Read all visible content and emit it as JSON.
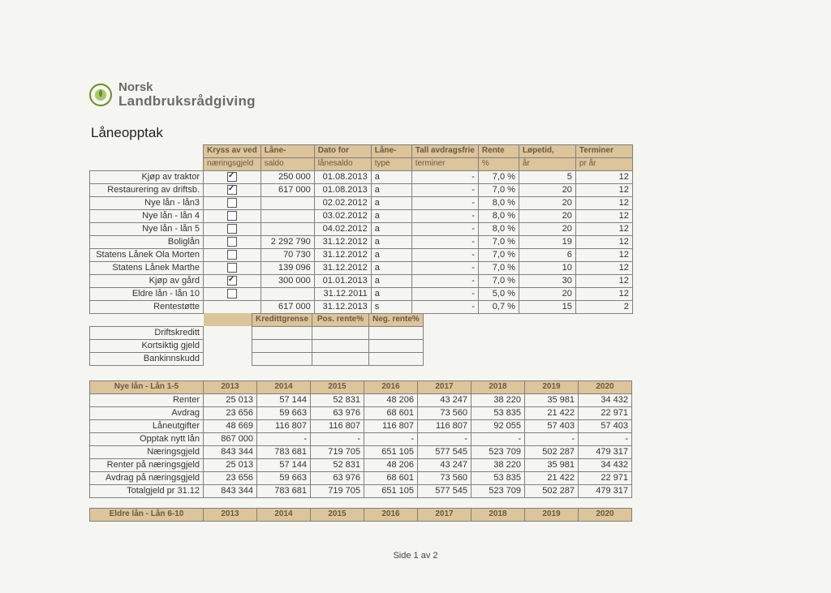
{
  "brand": {
    "line1": "Norsk",
    "line2": "Landbruksrådgiving"
  },
  "section_title": "Låneopptak",
  "loans_headers": {
    "kryss_top": "Kryss av ved",
    "kryss_sub": "næringsgjeld",
    "saldo_top": "Låne-",
    "saldo_sub": "saldo",
    "dato_top": "Dato for",
    "dato_sub": "lånesaldo",
    "type_top": "Låne-",
    "type_sub": "type",
    "avdrag_top": "Tall avdragsfrie",
    "rente_top": "Rente",
    "avdrag_sub": "terminer",
    "rente_sub": "%",
    "lopetid_top": "Løpetid,",
    "lopetid_sub": "år",
    "terminer_top": "Terminer",
    "terminer_sub": "pr år"
  },
  "loans": [
    {
      "label": "Kjøp av traktor",
      "checked": true,
      "saldo": "250 000",
      "dato": "01.08.2013",
      "type": "a",
      "avdrag": "-",
      "rente": "7,0 %",
      "lop": "5",
      "term": "12"
    },
    {
      "label": "Restaurering av driftsb.",
      "checked": true,
      "saldo": "617 000",
      "dato": "01.08.2013",
      "type": "a",
      "avdrag": "-",
      "rente": "7,0 %",
      "lop": "20",
      "term": "12"
    },
    {
      "label": "Nye lån - lån3",
      "checked": false,
      "saldo": "",
      "dato": "02.02.2012",
      "type": "a",
      "avdrag": "-",
      "rente": "8,0 %",
      "lop": "20",
      "term": "12"
    },
    {
      "label": "Nye lån - lån 4",
      "checked": false,
      "saldo": "",
      "dato": "03.02.2012",
      "type": "a",
      "avdrag": "-",
      "rente": "8,0 %",
      "lop": "20",
      "term": "12"
    },
    {
      "label": "Nye lån - lån 5",
      "checked": false,
      "saldo": "",
      "dato": "04.02.2012",
      "type": "a",
      "avdrag": "-",
      "rente": "8,0 %",
      "lop": "20",
      "term": "12"
    },
    {
      "label": "Boliglån",
      "checked": false,
      "saldo": "2 292 790",
      "dato": "31.12.2012",
      "type": "a",
      "avdrag": "-",
      "rente": "7,0 %",
      "lop": "19",
      "term": "12"
    },
    {
      "label": "Statens Lånek Ola Morten",
      "checked": false,
      "saldo": "70 730",
      "dato": "31.12.2012",
      "type": "a",
      "avdrag": "-",
      "rente": "7,0 %",
      "lop": "6",
      "term": "12"
    },
    {
      "label": "Statens Lånek Marthe",
      "checked": false,
      "saldo": "139 096",
      "dato": "31.12.2012",
      "type": "a",
      "avdrag": "-",
      "rente": "7,0 %",
      "lop": "10",
      "term": "12"
    },
    {
      "label": "Kjøp av gård",
      "checked": true,
      "saldo": "300 000",
      "dato": "01.01.2013",
      "type": "a",
      "avdrag": "-",
      "rente": "7,0 %",
      "lop": "30",
      "term": "12"
    },
    {
      "label": "Eldre lån - lån 10",
      "checked": false,
      "saldo": "",
      "dato": "31.12.2011",
      "type": "a",
      "avdrag": "-",
      "rente": "5,0 %",
      "lop": "20",
      "term": "12"
    },
    {
      "label": "Rentestøtte",
      "checked": null,
      "saldo": "617 000",
      "dato": "31.12.2013",
      "type": "s",
      "avdrag": "-",
      "rente": "0,7 %",
      "lop": "15",
      "term": "2"
    }
  ],
  "kreditt_header": {
    "a": "Kredittgrense",
    "b": "Pos. rente%",
    "c": "Neg. rente%"
  },
  "kreditt_rows": [
    {
      "label": "Driftskreditt"
    },
    {
      "label": "Kortsiktig gjeld"
    },
    {
      "label": "Bankinnskudd"
    }
  ],
  "years": [
    "2013",
    "2014",
    "2015",
    "2016",
    "2017",
    "2018",
    "2019",
    "2020"
  ],
  "proj_title": "Nye lån - Lån 1-5",
  "proj_rows": [
    {
      "label": "Renter",
      "vals": [
        "25 013",
        "57 144",
        "52 831",
        "48 206",
        "43 247",
        "38 220",
        "35 981",
        "34 432"
      ]
    },
    {
      "label": "Avdrag",
      "vals": [
        "23 656",
        "59 663",
        "63 976",
        "68 601",
        "73 560",
        "53 835",
        "21 422",
        "22 971"
      ]
    },
    {
      "label": "Låneutgifter",
      "vals": [
        "48 669",
        "116 807",
        "116 807",
        "116 807",
        "116 807",
        "92 055",
        "57 403",
        "57 403"
      ]
    },
    {
      "label": "Opptak nytt lån",
      "vals": [
        "867 000",
        "-",
        "-",
        "-",
        "-",
        "-",
        "-",
        "-"
      ]
    },
    {
      "label": "Næringsgjeld",
      "vals": [
        "843 344",
        "783 681",
        "719 705",
        "651 105",
        "577 545",
        "523 709",
        "502 287",
        "479 317"
      ]
    },
    {
      "label": "Renter på næringsgjeld",
      "vals": [
        "25 013",
        "57 144",
        "52 831",
        "48 206",
        "43 247",
        "38 220",
        "35 981",
        "34 432"
      ]
    },
    {
      "label": "Avdrag på næringsgjeld",
      "vals": [
        "23 656",
        "59 663",
        "63 976",
        "68 601",
        "73 560",
        "53 835",
        "21 422",
        "22 971"
      ]
    },
    {
      "label": "Totalgjeld pr 31.12",
      "vals": [
        "843 344",
        "783 681",
        "719 705",
        "651 105",
        "577 545",
        "523 709",
        "502 287",
        "479 317"
      ]
    }
  ],
  "proj2_title": "Eldre lån - Lån 6-10",
  "footer": "Side 1 av 2",
  "colors": {
    "header_bg": "#dcc49b",
    "header_text": "#6a5a42",
    "border": "#808080",
    "page_bg": "#f5f5f1"
  }
}
